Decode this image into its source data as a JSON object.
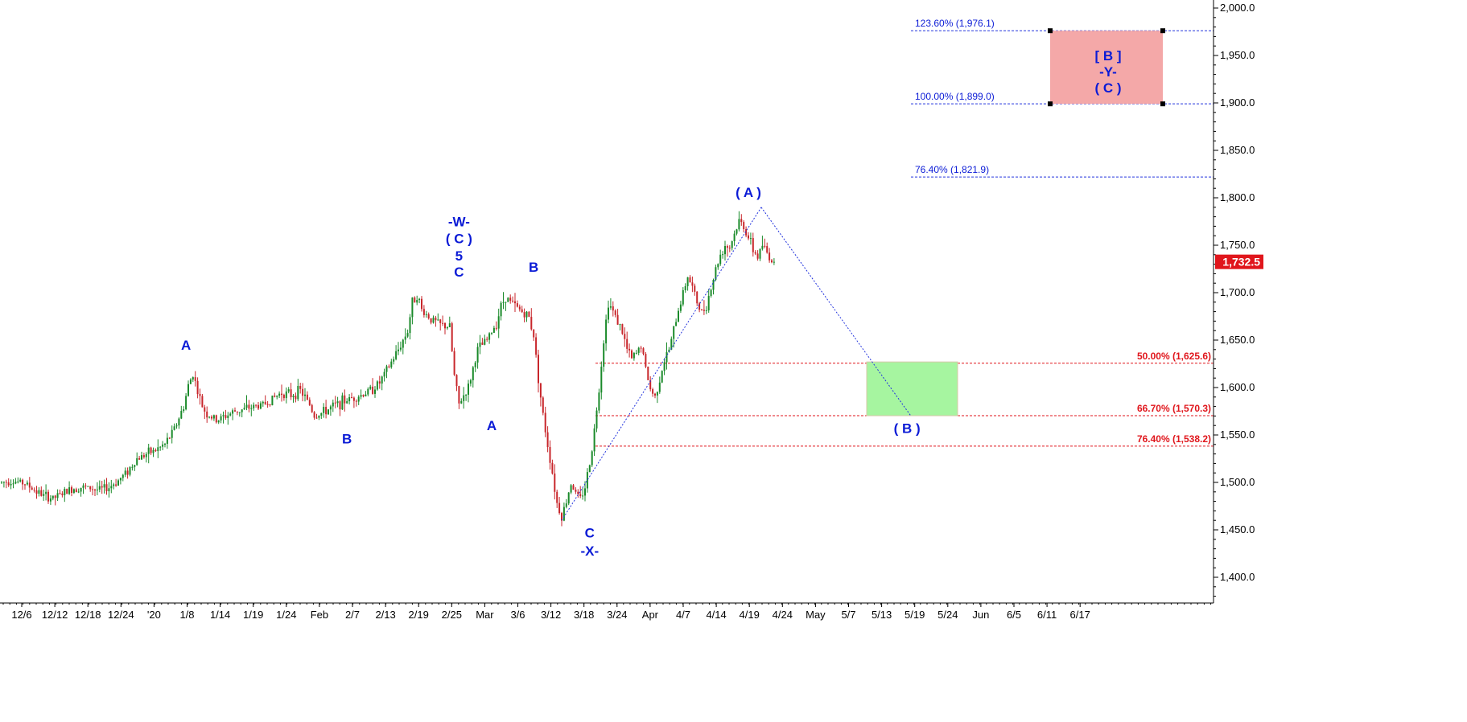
{
  "chart_data": {
    "type": "candlestick",
    "y_axis": {
      "range": [
        1370,
        2012
      ],
      "ticks": [
        "2,000.0",
        "1,950.0",
        "1,900.0",
        "1,850.0",
        "1,800.0",
        "1,750.0",
        "1,700.0",
        "1,650.0",
        "1,600.0",
        "1,550.0",
        "1,500.0",
        "1,450.0",
        "1,400.0"
      ],
      "tick_values": [
        2000,
        1950,
        1900,
        1850,
        1800,
        1750,
        1700,
        1650,
        1600,
        1550,
        1500,
        1450,
        1400
      ]
    },
    "x_axis": {
      "labels": [
        "12/6",
        "12/12",
        "12/18",
        "12/24",
        "'20",
        "1/8",
        "1/14",
        "1/19",
        "1/24",
        "Feb",
        "2/7",
        "2/13",
        "2/19",
        "2/25",
        "Mar",
        "3/6",
        "3/12",
        "3/18",
        "3/24",
        "Apr",
        "4/7",
        "4/14",
        "4/19",
        "4/24",
        "May",
        "5/7",
        "5/13",
        "5/19",
        "5/24",
        "Jun",
        "6/5",
        "6/11",
        "6/17"
      ]
    },
    "last_price": "1,732.5",
    "price_path": [
      [
        0,
        1500
      ],
      [
        4,
        1502
      ],
      [
        10,
        1499
      ],
      [
        14,
        1492
      ],
      [
        18,
        1486
      ],
      [
        22,
        1483
      ],
      [
        26,
        1488
      ],
      [
        30,
        1493
      ],
      [
        34,
        1495
      ],
      [
        38,
        1494
      ],
      [
        42,
        1492
      ],
      [
        46,
        1495
      ],
      [
        50,
        1502
      ],
      [
        54,
        1512
      ],
      [
        58,
        1525
      ],
      [
        62,
        1530
      ],
      [
        66,
        1534
      ],
      [
        70,
        1540
      ],
      [
        74,
        1556
      ],
      [
        78,
        1580
      ],
      [
        80,
        1602
      ],
      [
        82,
        1615
      ],
      [
        84,
        1596
      ],
      [
        86,
        1580
      ],
      [
        88,
        1572
      ],
      [
        92,
        1565
      ],
      [
        96,
        1570
      ],
      [
        100,
        1575
      ],
      [
        104,
        1577
      ],
      [
        108,
        1580
      ],
      [
        112,
        1582
      ],
      [
        116,
        1588
      ],
      [
        120,
        1595
      ],
      [
        124,
        1592
      ],
      [
        128,
        1597
      ],
      [
        132,
        1582
      ],
      [
        134,
        1570
      ],
      [
        138,
        1574
      ],
      [
        142,
        1580
      ],
      [
        146,
        1585
      ],
      [
        150,
        1589
      ],
      [
        154,
        1592
      ],
      [
        158,
        1597
      ],
      [
        162,
        1605
      ],
      [
        166,
        1622
      ],
      [
        170,
        1640
      ],
      [
        174,
        1660
      ],
      [
        176,
        1690
      ],
      [
        178,
        1698
      ],
      [
        180,
        1682
      ],
      [
        184,
        1672
      ],
      [
        188,
        1666
      ],
      [
        192,
        1664
      ],
      [
        194,
        1612
      ],
      [
        196,
        1582
      ],
      [
        198,
        1592
      ],
      [
        200,
        1600
      ],
      [
        204,
        1640
      ],
      [
        208,
        1650
      ],
      [
        212,
        1668
      ],
      [
        214,
        1686
      ],
      [
        216,
        1696
      ],
      [
        218,
        1690
      ],
      [
        222,
        1682
      ],
      [
        226,
        1674
      ],
      [
        228,
        1655
      ],
      [
        230,
        1610
      ],
      [
        232,
        1570
      ],
      [
        234,
        1540
      ],
      [
        236,
        1510
      ],
      [
        238,
        1478
      ],
      [
        240,
        1464
      ],
      [
        242,
        1480
      ],
      [
        244,
        1500
      ],
      [
        246,
        1488
      ],
      [
        248,
        1482
      ],
      [
        250,
        1496
      ],
      [
        252,
        1520
      ],
      [
        254,
        1555
      ],
      [
        256,
        1600
      ],
      [
        258,
        1650
      ],
      [
        260,
        1690
      ],
      [
        262,
        1680
      ],
      [
        264,
        1670
      ],
      [
        266,
        1658
      ],
      [
        268,
        1640
      ],
      [
        270,
        1630
      ],
      [
        272,
        1636
      ],
      [
        274,
        1645
      ],
      [
        276,
        1620
      ],
      [
        278,
        1598
      ],
      [
        280,
        1590
      ],
      [
        282,
        1610
      ],
      [
        284,
        1628
      ],
      [
        286,
        1640
      ],
      [
        288,
        1660
      ],
      [
        290,
        1682
      ],
      [
        292,
        1700
      ],
      [
        294,
        1718
      ],
      [
        296,
        1705
      ],
      [
        298,
        1690
      ],
      [
        300,
        1678
      ],
      [
        302,
        1688
      ],
      [
        304,
        1705
      ],
      [
        306,
        1725
      ],
      [
        308,
        1740
      ],
      [
        310,
        1750
      ],
      [
        312,
        1748
      ],
      [
        314,
        1762
      ],
      [
        316,
        1775
      ],
      [
        318,
        1770
      ],
      [
        320,
        1758
      ],
      [
        322,
        1745
      ],
      [
        324,
        1738
      ],
      [
        326,
        1750
      ],
      [
        328,
        1742
      ],
      [
        330,
        1734
      ],
      [
        331,
        1732.5
      ]
    ],
    "wave_labels": [
      {
        "text": "A",
        "x": 79,
        "price": 1640
      },
      {
        "text": "B",
        "x": 148,
        "price": 1541
      },
      {
        "text": "-W-",
        "x": 196,
        "price": 1770
      },
      {
        "text": "( C )",
        "x": 196,
        "price": 1752
      },
      {
        "text": "5",
        "x": 196,
        "price": 1734
      },
      {
        "text": "C",
        "x": 196,
        "price": 1717
      },
      {
        "text": "A",
        "x": 210,
        "price": 1555
      },
      {
        "text": "B",
        "x": 228,
        "price": 1722
      },
      {
        "text": "C",
        "x": 252,
        "price": 1442
      },
      {
        "text": "-X-",
        "x": 252,
        "price": 1423
      },
      {
        "text": "( A )",
        "x": 320,
        "price": 1801
      },
      {
        "text": "( B )",
        "x": 388,
        "price": 1552
      }
    ],
    "fib_levels_projection": [
      {
        "label": "123.60% (1,976.1)",
        "price": 1976.1
      },
      {
        "label": "100.00% (1,899.0)",
        "price": 1899.0
      },
      {
        "label": "76.40% (1,821.9)",
        "price": 1821.9
      }
    ],
    "fib_levels_retracement": [
      {
        "label": "50.00% (1,625.6)",
        "price": 1625.6
      },
      {
        "label": "66.70% (1,570.3)",
        "price": 1570.3
      },
      {
        "label": "76.40% (1,538.2)",
        "price": 1538.2
      }
    ],
    "target_box_upper": {
      "labels": [
        "[ B ]",
        "-Y-",
        "( C )"
      ],
      "price_top": 1976.1,
      "price_bottom": 1899.0,
      "color": "#f4a8a8"
    },
    "target_box_lower": {
      "price_top": 1627,
      "price_bottom": 1570.3,
      "color": "#a6f5a0"
    },
    "colors": {
      "up": "#1a8a2a",
      "down": "#c8262b",
      "wave": "#0b1bd6",
      "fib_blue": "#2233dd",
      "fib_red": "#e0161c",
      "badge": "#e0161c"
    }
  }
}
